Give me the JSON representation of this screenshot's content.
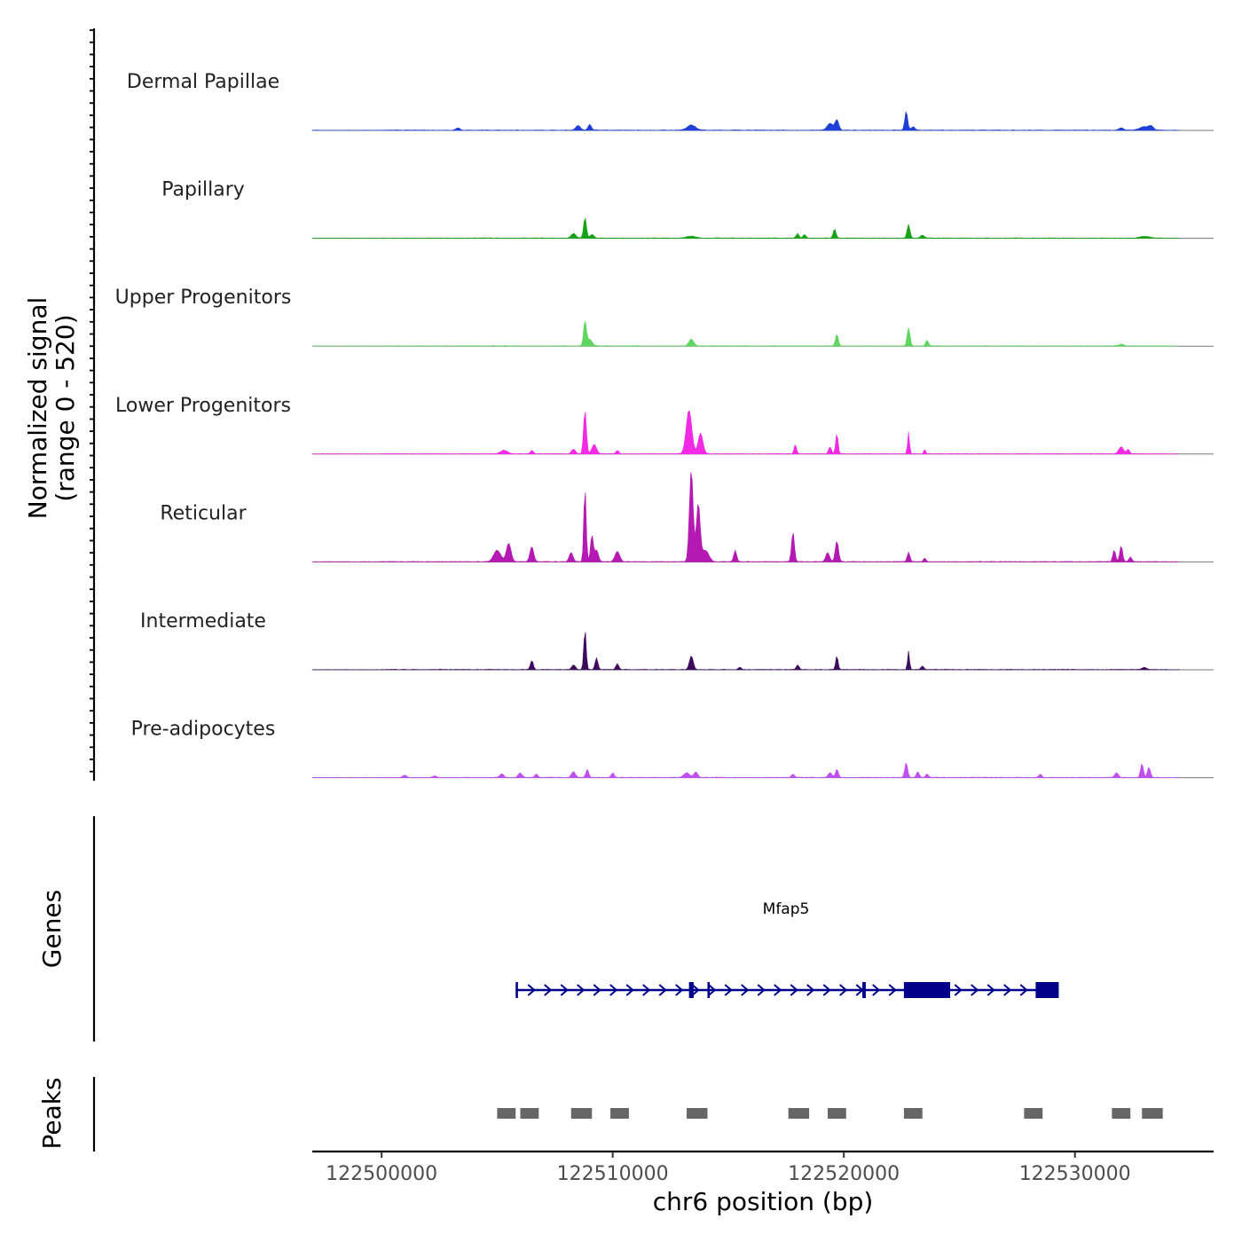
{
  "chart_data": {
    "type": "area",
    "title": "",
    "y_axis_label": "Normalized signal",
    "y_axis_range_label": "(range 0 - 520)",
    "y_range": [
      0,
      520
    ],
    "x_axis_label": "chr6 position (bp)",
    "x_range": [
      122497000,
      122536000
    ],
    "x_ticks": [
      "122500000",
      "122510000",
      "122520000",
      "122530000"
    ],
    "x_tick_values": [
      122500000,
      122510000,
      122520000,
      122530000
    ],
    "tracks": [
      {
        "name": "Dermal Papillae",
        "color": "#1f3fd6",
        "peaks": [
          [
            122503300,
            20,
            80
          ],
          [
            122508500,
            40,
            100
          ],
          [
            122509000,
            50,
            70
          ],
          [
            122513400,
            45,
            180
          ],
          [
            122519400,
            60,
            120
          ],
          [
            122519700,
            90,
            80
          ],
          [
            122522700,
            165,
            60
          ],
          [
            122523000,
            30,
            80
          ],
          [
            122532000,
            20,
            100
          ],
          [
            122533000,
            30,
            200
          ],
          [
            122533300,
            30,
            100
          ]
        ]
      },
      {
        "name": "Papillary",
        "color": "#17a317",
        "peaks": [
          [
            122508300,
            40,
            100
          ],
          [
            122508800,
            180,
            60
          ],
          [
            122509100,
            30,
            80
          ],
          [
            122513400,
            15,
            200
          ],
          [
            122518000,
            40,
            60
          ],
          [
            122518300,
            30,
            60
          ],
          [
            122519600,
            80,
            60
          ],
          [
            122522800,
            120,
            60
          ],
          [
            122523400,
            25,
            80
          ],
          [
            122533000,
            15,
            200
          ]
        ]
      },
      {
        "name": "Upper Progenitors",
        "color": "#5ed660",
        "peaks": [
          [
            122508800,
            215,
            60
          ],
          [
            122509000,
            60,
            100
          ],
          [
            122513400,
            60,
            100
          ],
          [
            122519700,
            100,
            60
          ],
          [
            122522800,
            160,
            60
          ],
          [
            122523600,
            50,
            60
          ],
          [
            122532000,
            15,
            100
          ]
        ]
      },
      {
        "name": "Lower Progenitors",
        "color": "#f22ae6",
        "peaks": [
          [
            122505300,
            30,
            150
          ],
          [
            122506500,
            30,
            60
          ],
          [
            122508300,
            40,
            80
          ],
          [
            122508800,
            380,
            60
          ],
          [
            122509200,
            80,
            100
          ],
          [
            122510200,
            30,
            60
          ],
          [
            122513300,
            380,
            120
          ],
          [
            122513800,
            180,
            100
          ],
          [
            122517900,
            80,
            50
          ],
          [
            122519400,
            60,
            60
          ],
          [
            122519700,
            180,
            50
          ],
          [
            122522800,
            190,
            40
          ],
          [
            122523500,
            40,
            40
          ],
          [
            122532000,
            60,
            100
          ],
          [
            122532300,
            40,
            60
          ]
        ]
      },
      {
        "name": "Reticular",
        "color": "#b519b3",
        "peaks": [
          [
            122505000,
            100,
            150
          ],
          [
            122505500,
            160,
            100
          ],
          [
            122506500,
            130,
            80
          ],
          [
            122508200,
            80,
            80
          ],
          [
            122508800,
            650,
            50
          ],
          [
            122509100,
            230,
            60
          ],
          [
            122509300,
            100,
            80
          ],
          [
            122510200,
            90,
            100
          ],
          [
            122513400,
            800,
            80
          ],
          [
            122513700,
            500,
            80
          ],
          [
            122514000,
            100,
            150
          ],
          [
            122515300,
            100,
            60
          ],
          [
            122517800,
            260,
            60
          ],
          [
            122519300,
            80,
            80
          ],
          [
            122519700,
            180,
            70
          ],
          [
            122522800,
            80,
            60
          ],
          [
            122523500,
            30,
            60
          ],
          [
            122531700,
            100,
            60
          ],
          [
            122532000,
            140,
            60
          ],
          [
            122532400,
            40,
            60
          ]
        ]
      },
      {
        "name": "Intermediate",
        "color": "#3d0a5c",
        "peaks": [
          [
            122506500,
            80,
            60
          ],
          [
            122508300,
            40,
            80
          ],
          [
            122508800,
            350,
            50
          ],
          [
            122509300,
            100,
            60
          ],
          [
            122510200,
            50,
            60
          ],
          [
            122513400,
            120,
            80
          ],
          [
            122515500,
            20,
            60
          ],
          [
            122518000,
            40,
            60
          ],
          [
            122519700,
            120,
            50
          ],
          [
            122522800,
            160,
            40
          ],
          [
            122523400,
            30,
            60
          ],
          [
            122533000,
            20,
            100
          ]
        ]
      },
      {
        "name": "Pre-adipocytes",
        "color": "#c04ff2",
        "peaks": [
          [
            122501000,
            20,
            80
          ],
          [
            122502300,
            15,
            60
          ],
          [
            122505200,
            30,
            80
          ],
          [
            122506000,
            40,
            80
          ],
          [
            122506700,
            30,
            60
          ],
          [
            122508300,
            50,
            80
          ],
          [
            122508900,
            70,
            60
          ],
          [
            122510000,
            40,
            60
          ],
          [
            122513200,
            40,
            120
          ],
          [
            122513600,
            50,
            80
          ],
          [
            122517800,
            30,
            60
          ],
          [
            122519400,
            40,
            80
          ],
          [
            122519700,
            70,
            60
          ],
          [
            122522700,
            130,
            60
          ],
          [
            122523200,
            50,
            60
          ],
          [
            122523600,
            30,
            60
          ],
          [
            122528500,
            30,
            60
          ],
          [
            122531800,
            40,
            80
          ],
          [
            122532900,
            120,
            60
          ],
          [
            122533200,
            90,
            60
          ]
        ]
      }
    ],
    "genes": {
      "label": "Genes",
      "gene_name": "Mfap5",
      "gene_start": 122505800,
      "gene_end": 122529300,
      "strand": "+",
      "exons": [
        [
          122505800,
          122505900
        ],
        [
          122513300,
          122513500
        ],
        [
          122514100,
          122514200
        ],
        [
          122520800,
          122520950
        ],
        [
          122522600,
          122524600
        ],
        [
          122528300,
          122529300
        ]
      ]
    },
    "peaks_track": {
      "label": "Peaks",
      "regions": [
        [
          122505000,
          122505800
        ],
        [
          122506000,
          122506800
        ],
        [
          122508200,
          122509100
        ],
        [
          122509900,
          122510700
        ],
        [
          122513200,
          122514100
        ],
        [
          122517600,
          122518500
        ],
        [
          122519300,
          122520100
        ],
        [
          122522600,
          122523400
        ],
        [
          122527800,
          122528600
        ],
        [
          122531600,
          122532400
        ],
        [
          122532900,
          122533800
        ]
      ]
    }
  }
}
